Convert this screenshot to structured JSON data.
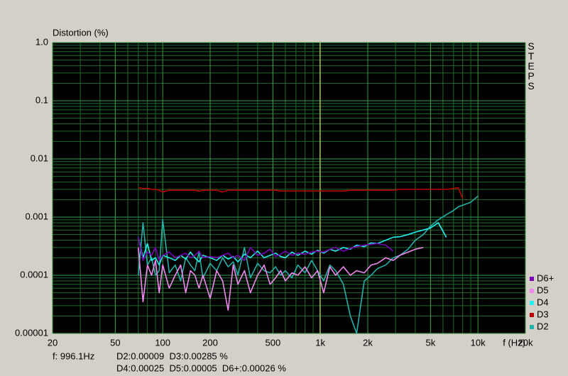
{
  "chart_data": {
    "type": "line",
    "y_label": "Distortion (%)",
    "x_label": "f (Hz)",
    "side_label": "STEPS",
    "log_x": true,
    "log_y": true,
    "grid": true,
    "minor_grid": true,
    "legend": "lower right",
    "xlim": [
      20,
      20000
    ],
    "ylim": [
      1e-05,
      1
    ],
    "xticks": [
      20,
      50,
      100,
      200,
      500,
      {
        "value": 1000,
        "label": "1k"
      },
      {
        "value": 2000,
        "label": "2k"
      },
      {
        "value": 5000,
        "label": "5k"
      },
      {
        "value": 10000,
        "label": "10k"
      },
      {
        "value": 20000,
        "label": "20k"
      }
    ],
    "yticks": [
      {
        "value": 1,
        "label": "1.0"
      },
      0.1,
      0.01,
      0.001,
      0.0001,
      1e-05
    ],
    "cursor": {
      "value": 996.1,
      "label": "f: 996.1Hz",
      "color": "#e8e870"
    },
    "readout": [
      "D2:0.00009  D3:0.00285 %",
      "D4:0.00025  D5:0.00005  D6+:0.00026 %"
    ],
    "x": [
      70,
      75,
      80,
      85,
      90,
      95,
      100,
      110,
      120,
      130,
      140,
      150,
      160,
      170,
      180,
      200,
      220,
      240,
      260,
      280,
      300,
      330,
      360,
      400,
      440,
      480,
      520,
      560,
      600,
      660,
      720,
      800,
      880,
      960,
      1050,
      1150,
      1250,
      1400,
      1550,
      1700,
      1900,
      2100,
      2300,
      2600,
      2900,
      3200,
      3600,
      4000,
      4500,
      5000,
      5600,
      6300,
      7000,
      7500,
      8000,
      9000,
      10000
    ],
    "series": [
      {
        "name": "D6+",
        "color": "#7a00b8",
        "values": [
          0.00045,
          0.00018,
          0.00025,
          0.00022,
          0.0003,
          0.00018,
          0.00022,
          0.00025,
          0.0002,
          0.00022,
          0.00024,
          0.0002,
          0.00022,
          0.00026,
          0.0002,
          0.00021,
          0.0002,
          0.00022,
          0.00024,
          0.0002,
          0.00022,
          0.00018,
          0.0003,
          0.00022,
          0.00024,
          0.00028,
          0.00021,
          0.00023,
          0.00026,
          0.00022,
          0.00024,
          0.00023,
          0.00025,
          0.00026,
          0.00025,
          0.00028,
          0.0003,
          0.00026,
          0.00029,
          0.00031,
          0.00033,
          0.00034,
          0.00035,
          0.00033,
          0.00026,
          null,
          null,
          null,
          null,
          null,
          null,
          null,
          null,
          null,
          null,
          null,
          null
        ]
      },
      {
        "name": "D5",
        "color": "#f088f0",
        "values": [
          0.0003,
          3.5e-05,
          0.00015,
          0.0001,
          0.00018,
          5e-05,
          0.00015,
          6e-05,
          0.0001,
          0.00015,
          5e-05,
          0.00012,
          0.0001,
          6e-05,
          0.0001,
          4e-05,
          0.00012,
          8e-05,
          2.5e-05,
          0.00015,
          7e-05,
          0.00012,
          5e-05,
          0.0001,
          0.00015,
          7e-05,
          9e-05,
          0.00012,
          8e-05,
          0.00011,
          0.0001,
          0.00014,
          9e-05,
          0.00012,
          5e-05,
          0.00014,
          0.0001,
          0.00014,
          0.0001,
          0.00012,
          0.00011,
          0.00015,
          0.00016,
          0.0002,
          0.00018,
          0.00022,
          0.00025,
          0.00028,
          0.0003,
          null,
          null,
          null,
          null,
          null,
          null,
          null,
          null
        ]
      },
      {
        "name": "D4",
        "color": "#20f0f0",
        "values": [
          0.00045,
          0.0002,
          0.00035,
          0.00018,
          0.0002,
          0.00015,
          0.00022,
          0.0002,
          0.00018,
          0.00022,
          0.00019,
          0.00025,
          0.0002,
          0.00017,
          0.00022,
          0.0002,
          0.00018,
          0.00022,
          0.00019,
          0.00021,
          0.00017,
          0.00023,
          0.0002,
          0.00026,
          0.0002,
          0.00022,
          0.00024,
          0.00021,
          0.0002,
          0.00025,
          0.00022,
          0.00026,
          0.00023,
          0.00027,
          0.00024,
          0.00028,
          0.00026,
          0.0003,
          0.00028,
          0.00033,
          0.00031,
          0.00036,
          0.00035,
          0.0004,
          0.00045,
          0.00046,
          0.0005,
          0.00055,
          0.0006,
          0.00065,
          0.0008,
          0.00045,
          null,
          null,
          null,
          null,
          null
        ]
      },
      {
        "name": "D3",
        "color": "#b80000",
        "values": [
          0.0032,
          0.0031,
          0.0031,
          0.003,
          0.003,
          0.0029,
          0.0027,
          0.0029,
          0.0029,
          0.0029,
          0.0029,
          0.0029,
          0.0029,
          0.0028,
          0.0029,
          0.0029,
          0.0029,
          0.0027,
          0.0029,
          0.0029,
          0.0029,
          0.0029,
          0.0029,
          0.0029,
          0.0029,
          0.0029,
          0.0029,
          0.0028,
          0.0028,
          0.0028,
          0.0028,
          0.0028,
          0.0028,
          0.0028,
          0.0028,
          0.0028,
          0.0028,
          0.0028,
          0.0029,
          0.0029,
          0.0029,
          0.0029,
          0.0029,
          0.0029,
          0.0029,
          0.003,
          0.003,
          0.003,
          0.003,
          0.003,
          0.003,
          0.003,
          0.0031,
          0.0032,
          0.0021,
          null,
          null
        ]
      },
      {
        "name": "D2",
        "color": "#20b0a8",
        "values": [
          0.0001,
          0.0008,
          0.00015,
          0.0002,
          0.0001,
          0.00012,
          0.0009,
          0.00011,
          0.00015,
          8e-05,
          0.0002,
          0.00015,
          0.00012,
          0.00025,
          9e-05,
          0.00016,
          0.00012,
          0.0002,
          0.00014,
          0.00017,
          0.0001,
          0.0003,
          9e-05,
          0.00016,
          0.00012,
          0.00011,
          0.00014,
          0.0001,
          0.00012,
          9e-05,
          0.00015,
          0.00011,
          0.00018,
          0.00012,
          8e-05,
          0.00015,
          0.00012,
          7e-05,
          2e-05,
          1e-05,
          8e-05,
          0.0001,
          0.00013,
          0.00015,
          0.0002,
          0.00022,
          0.00028,
          0.0004,
          0.0005,
          0.0007,
          0.0009,
          0.0011,
          0.0013,
          0.0015,
          0.0016,
          0.0018,
          0.0023
        ]
      }
    ]
  }
}
